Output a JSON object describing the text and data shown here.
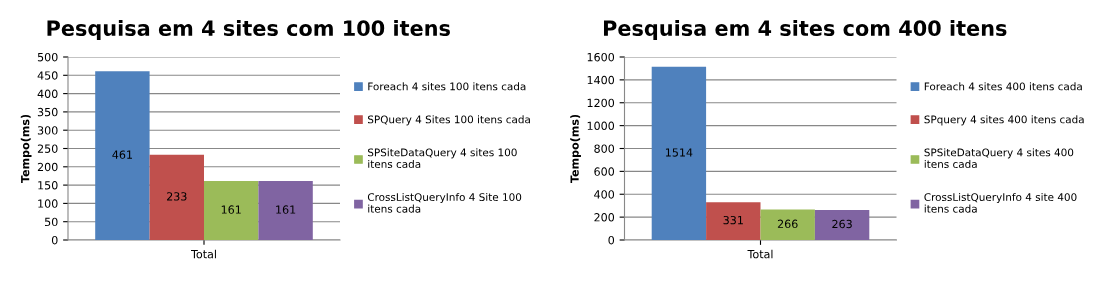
{
  "chart_data": [
    {
      "type": "bar",
      "title": "Pesquisa em 4 sites com 100 itens",
      "ylabel": "Tempo(ms)",
      "categories": [
        "Total"
      ],
      "ylim": [
        0,
        500
      ],
      "yticks": [
        0,
        50,
        100,
        150,
        200,
        250,
        300,
        350,
        400,
        450,
        500
      ],
      "grid": "y",
      "legend": "right",
      "data_labels": true,
      "series": [
        {
          "name": "Foreach 4 sites 100 itens cada",
          "color": "#4f81bd",
          "values": [
            461
          ]
        },
        {
          "name": "SPQuery 4 Sites 100 itens cada",
          "color": "#c0504d",
          "values": [
            233
          ]
        },
        {
          "name": "SPSiteDataQuery 4 sites 100 itens cada",
          "color": "#9bbb59",
          "values": [
            161
          ]
        },
        {
          "name": "CrossListQueryInfo 4 Site 100 itens cada",
          "color": "#8064a2",
          "values": [
            161
          ]
        }
      ]
    },
    {
      "type": "bar",
      "title": "Pesquisa em 4 sites com 400 itens",
      "ylabel": "Tempo(ms)",
      "categories": [
        "Total"
      ],
      "ylim": [
        0,
        1600
      ],
      "yticks": [
        0,
        200,
        400,
        600,
        800,
        1000,
        1200,
        1400,
        1600
      ],
      "grid": "y",
      "legend": "right",
      "data_labels": true,
      "series": [
        {
          "name": "Foreach 4 sites 400 itens cada",
          "color": "#4f81bd",
          "values": [
            1514
          ]
        },
        {
          "name": "SPquery 4 sites 400 itens cada",
          "color": "#c0504d",
          "values": [
            331
          ]
        },
        {
          "name": "SPSiteDataQuery 4 sites 400 itens cada",
          "color": "#9bbb59",
          "values": [
            266
          ]
        },
        {
          "name": "CrossListQueryInfo 4 site 400 itens cada",
          "color": "#8064a2",
          "values": [
            263
          ]
        }
      ]
    }
  ]
}
